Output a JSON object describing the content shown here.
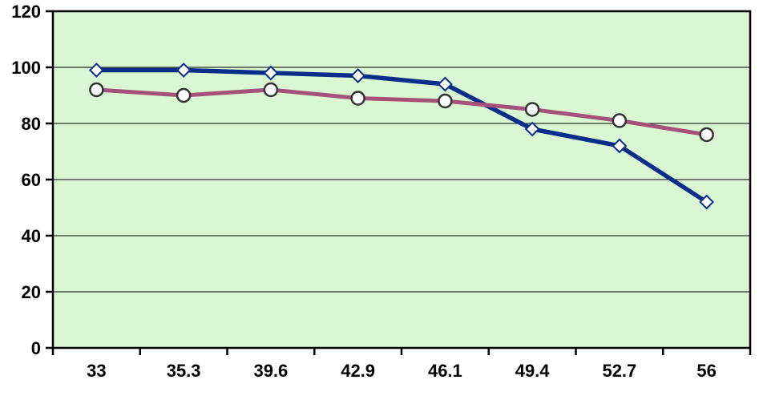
{
  "chart_data": {
    "type": "line",
    "title": "",
    "xlabel": "",
    "ylabel": "",
    "categories": [
      "33",
      "35.3",
      "39.6",
      "42.9",
      "46.1",
      "49.4",
      "52.7",
      "56"
    ],
    "series": [
      {
        "name": "navy-diamond-series",
        "color": "#0b2d8a",
        "line_width": 5.5,
        "marker": "diamond",
        "marker_fill": "#ffffff",
        "marker_stroke": "#0b2d8a",
        "values": [
          99,
          99,
          98,
          97,
          94,
          78,
          72,
          52
        ]
      },
      {
        "name": "plum-circle-series",
        "color": "#a35279",
        "line_width": 5,
        "marker": "circle",
        "marker_fill": "#ffffff",
        "marker_stroke": "#333333",
        "values": [
          92,
          90,
          92,
          89,
          88,
          85,
          81,
          76
        ]
      }
    ],
    "ylim": [
      0,
      120
    ],
    "yticks": [
      0,
      20,
      40,
      60,
      80,
      100,
      120
    ],
    "grid": true,
    "legend": "none",
    "colors": {
      "plot_background": "#d9f7d2",
      "gridline": "#000000",
      "axis": "#000000",
      "tick_label": "#000000",
      "page_background": "#ffffff"
    }
  }
}
